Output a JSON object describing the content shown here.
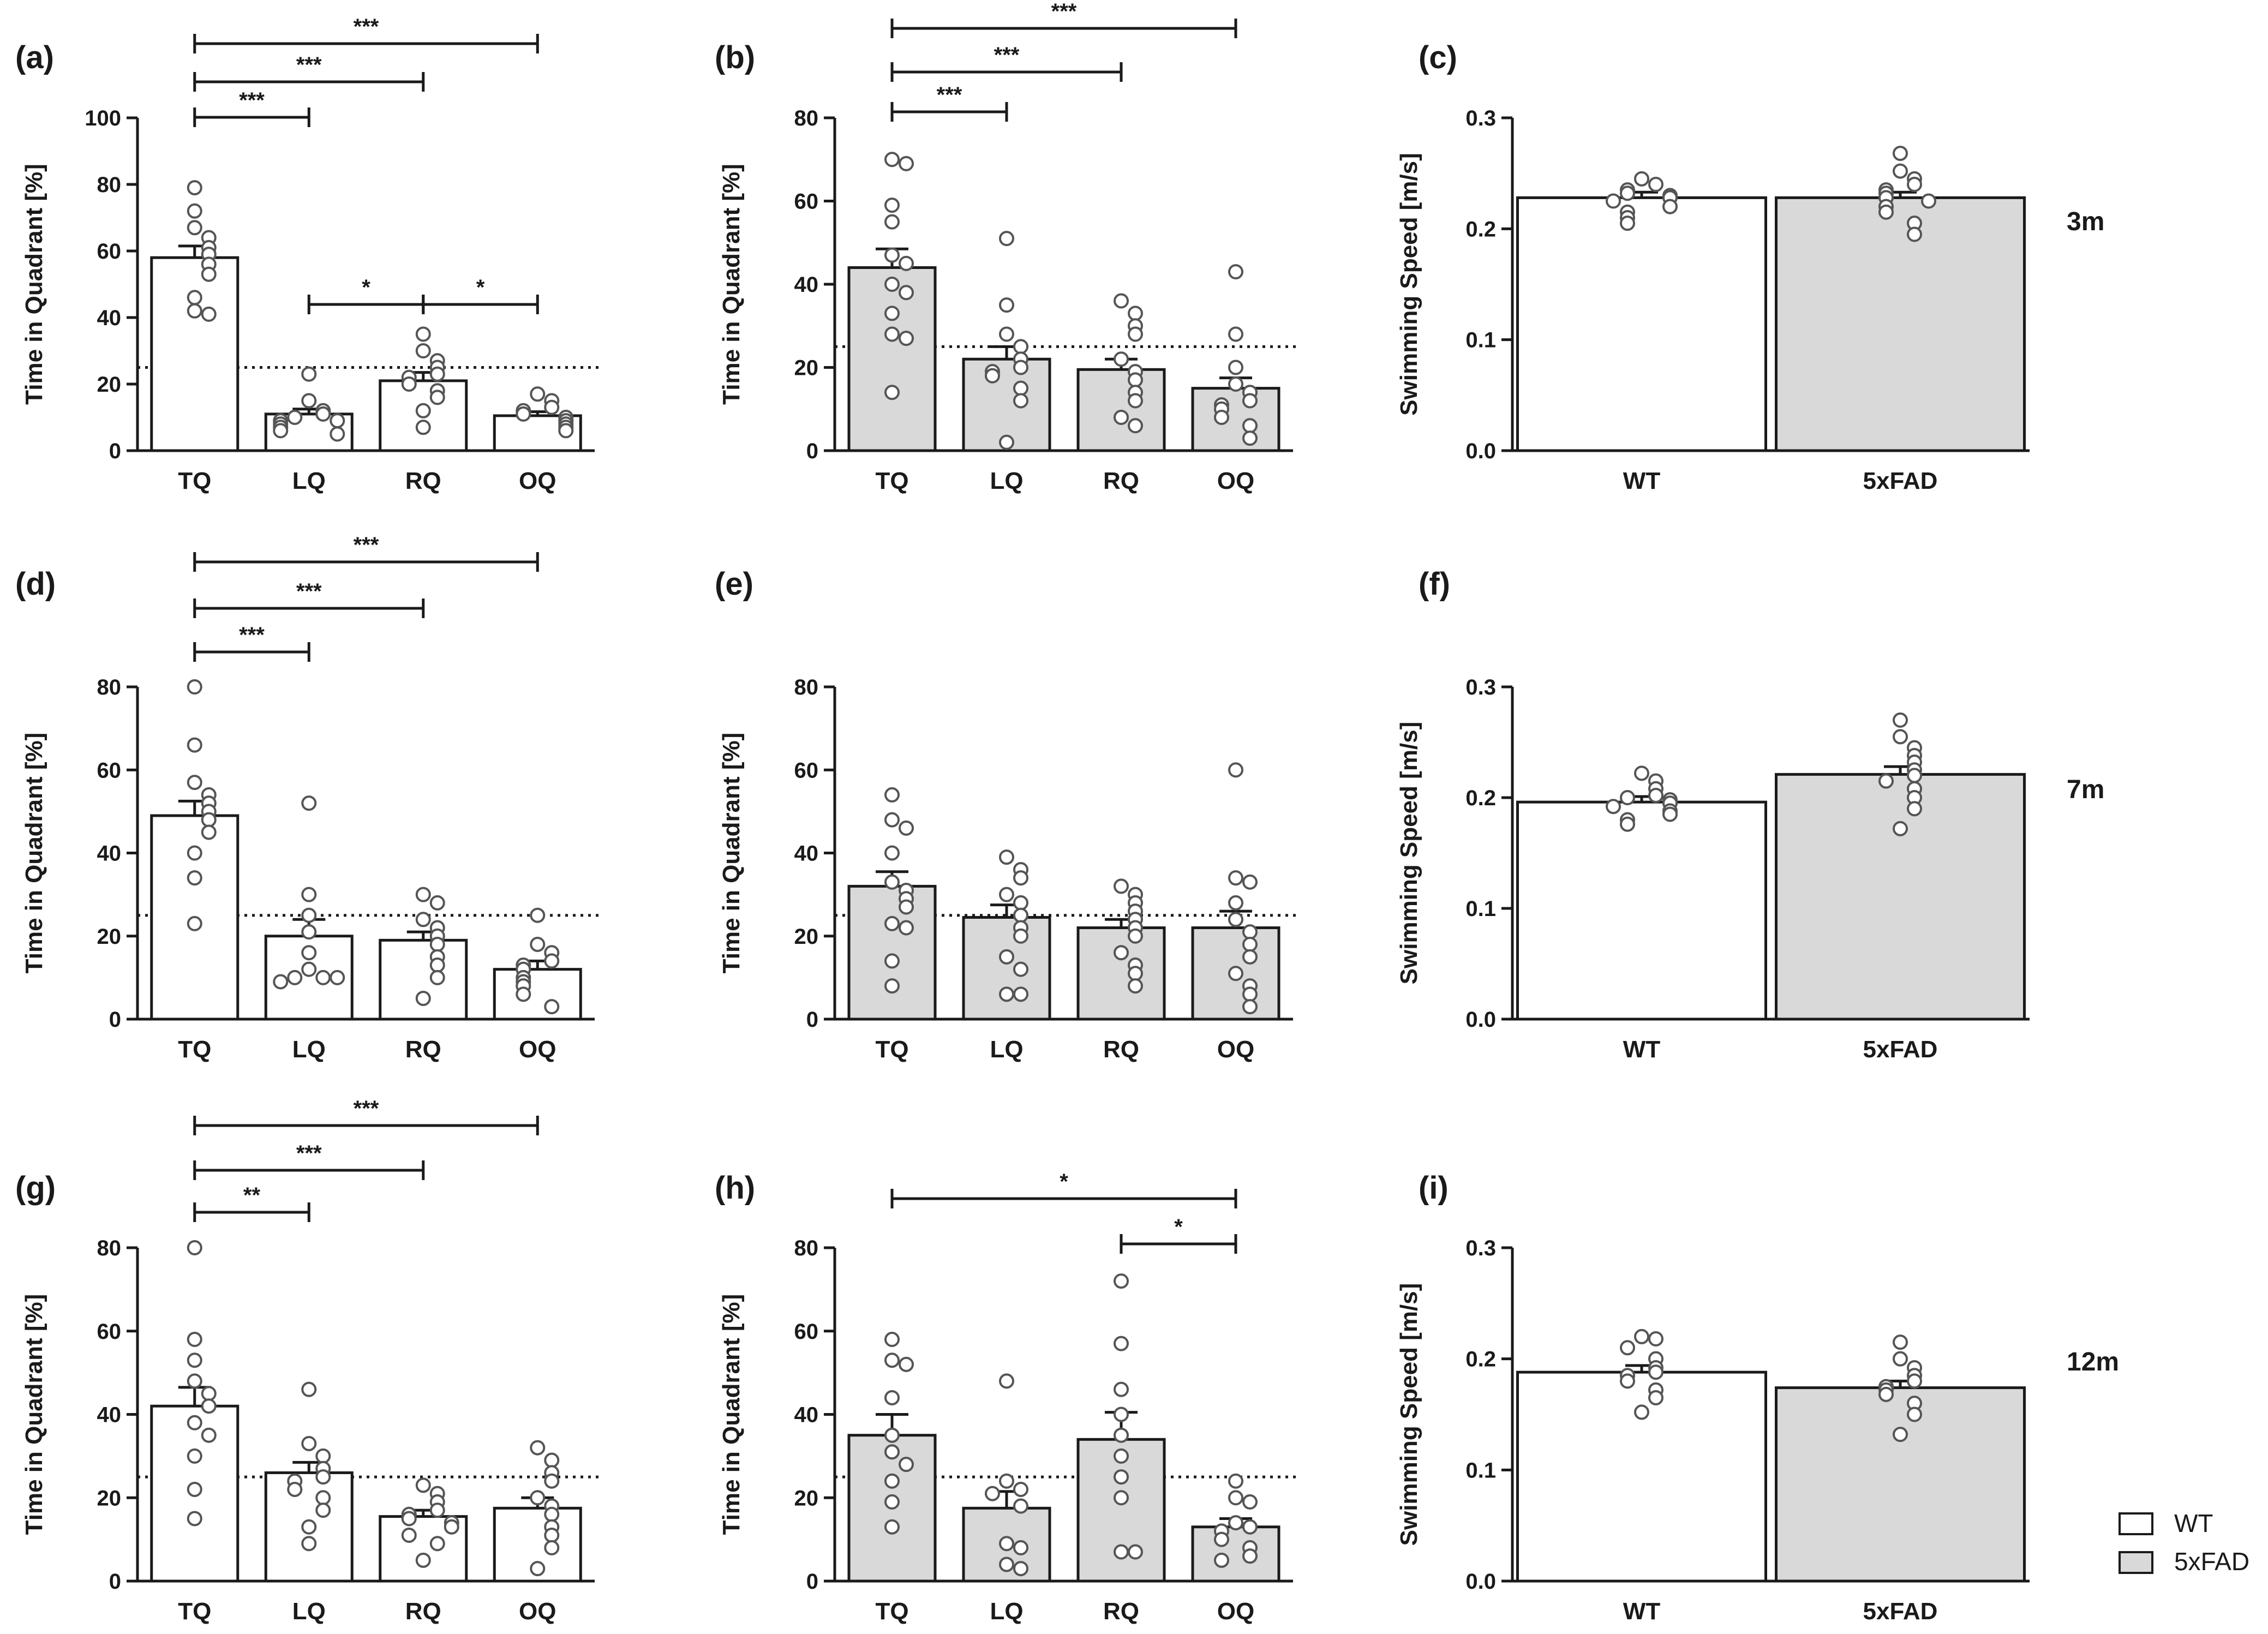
{
  "colors": {
    "wt": "#ffffff",
    "fad": "#d9d9d9",
    "ink": "#1a1a1a",
    "point_stroke": "#555555"
  },
  "legend": [
    {
      "name": "WT",
      "color": "#ffffff"
    },
    {
      "name": "5xFAD",
      "color": "#d9d9d9"
    }
  ],
  "ages": [
    "3m",
    "7m",
    "12m"
  ],
  "chart_data": [
    {
      "id": "a",
      "panel": "(a)",
      "type": "bar",
      "group": "WT",
      "title": "",
      "ylabel": "Time in Quadrant [%]",
      "xlabel": "",
      "categories": [
        "TQ",
        "LQ",
        "RQ",
        "OQ"
      ],
      "values": [
        58,
        11,
        21,
        10.5
      ],
      "sem": [
        3.5,
        1.5,
        2.5,
        1.2
      ],
      "ylim": [
        0,
        100
      ],
      "yticks": [
        "0",
        "20",
        "40",
        "60",
        "80",
        "100"
      ],
      "ytick_values": [
        0,
        20,
        40,
        60,
        80,
        100
      ],
      "chance_level": 25,
      "points": [
        [
          79,
          72,
          67,
          64,
          61,
          59,
          56,
          53,
          46,
          42,
          41
        ],
        [
          23,
          15,
          12,
          11,
          10,
          9,
          9,
          8,
          7,
          6,
          5
        ],
        [
          35,
          30,
          27,
          25,
          23,
          22,
          20,
          18,
          16,
          12,
          7
        ],
        [
          17,
          15,
          13,
          12,
          11,
          10,
          9,
          8,
          7,
          6
        ]
      ],
      "comparisons": [
        {
          "from": 0,
          "to": 1,
          "label": "***"
        },
        {
          "from": 0,
          "to": 2,
          "label": "***"
        },
        {
          "from": 0,
          "to": 3,
          "label": "***"
        },
        {
          "from": 1,
          "to": 2,
          "label": "*"
        },
        {
          "from": 2,
          "to": 3,
          "label": "*"
        }
      ]
    },
    {
      "id": "b",
      "panel": "(b)",
      "type": "bar",
      "group": "5xFAD",
      "title": "",
      "ylabel": "Time in Quadrant [%]",
      "xlabel": "",
      "categories": [
        "TQ",
        "LQ",
        "RQ",
        "OQ"
      ],
      "values": [
        44,
        22,
        19.5,
        15
      ],
      "sem": [
        4.5,
        3,
        2.5,
        2.5
      ],
      "ylim": [
        0,
        80
      ],
      "yticks": [
        "0",
        "20",
        "40",
        "60",
        "80"
      ],
      "ytick_values": [
        0,
        20,
        40,
        60,
        80
      ],
      "chance_level": 25,
      "points": [
        [
          70,
          69,
          59,
          55,
          47,
          45,
          40,
          38,
          33,
          28,
          27,
          14
        ],
        [
          51,
          35,
          28,
          25,
          22,
          20,
          19,
          18,
          15,
          12,
          2
        ],
        [
          36,
          33,
          30,
          28,
          22,
          19,
          17,
          14,
          12,
          8,
          6
        ],
        [
          43,
          28,
          20,
          16,
          14,
          12,
          11,
          10,
          8,
          6,
          3
        ]
      ],
      "comparisons": [
        {
          "from": 0,
          "to": 1,
          "label": "***"
        },
        {
          "from": 0,
          "to": 2,
          "label": "***"
        },
        {
          "from": 0,
          "to": 3,
          "label": "***"
        }
      ]
    },
    {
      "id": "c",
      "panel": "(c)",
      "type": "bar",
      "title": "",
      "ylabel": "Swimming Speed [m/s]",
      "xlabel": "",
      "categories": [
        "WT",
        "5xFAD"
      ],
      "values": [
        0.228,
        0.228
      ],
      "sem": [
        0.005,
        0.005
      ],
      "ylim": [
        0,
        0.3
      ],
      "yticks": [
        "0.0",
        "0.1",
        "0.2",
        "0.3"
      ],
      "ytick_values": [
        0,
        0.1,
        0.2,
        0.3
      ],
      "points": [
        [
          0.245,
          0.24,
          0.235,
          0.232,
          0.23,
          0.228,
          0.225,
          0.22,
          0.215,
          0.21,
          0.205
        ],
        [
          0.268,
          0.252,
          0.245,
          0.24,
          0.235,
          0.232,
          0.228,
          0.225,
          0.22,
          0.215,
          0.205,
          0.195
        ]
      ],
      "comparisons": []
    },
    {
      "id": "d",
      "panel": "(d)",
      "type": "bar",
      "group": "WT",
      "title": "",
      "ylabel": "Time in Quadrant [%]",
      "xlabel": "",
      "categories": [
        "TQ",
        "LQ",
        "RQ",
        "OQ"
      ],
      "values": [
        49,
        20,
        19,
        12
      ],
      "sem": [
        3.5,
        4,
        2,
        2
      ],
      "ylim": [
        0,
        80
      ],
      "yticks": [
        "0",
        "20",
        "40",
        "60",
        "80"
      ],
      "ytick_values": [
        0,
        20,
        40,
        60,
        80
      ],
      "chance_level": 25,
      "points": [
        [
          80,
          66,
          57,
          54,
          52,
          50,
          48,
          45,
          40,
          34,
          23
        ],
        [
          52,
          30,
          25,
          21,
          16,
          12,
          10,
          10,
          10,
          9
        ],
        [
          30,
          28,
          24,
          22,
          20,
          18,
          15,
          13,
          10,
          5
        ],
        [
          25,
          18,
          16,
          14,
          13,
          12,
          10,
          9,
          8,
          6,
          3
        ]
      ],
      "comparisons": [
        {
          "from": 0,
          "to": 1,
          "label": "***"
        },
        {
          "from": 0,
          "to": 2,
          "label": "***"
        },
        {
          "from": 0,
          "to": 3,
          "label": "***"
        }
      ]
    },
    {
      "id": "e",
      "panel": "(e)",
      "type": "bar",
      "group": "5xFAD",
      "title": "",
      "ylabel": "Time in Quadrant [%]",
      "xlabel": "",
      "categories": [
        "TQ",
        "LQ",
        "RQ",
        "OQ"
      ],
      "values": [
        32,
        24.5,
        22,
        22
      ],
      "sem": [
        3.5,
        3,
        2,
        4
      ],
      "ylim": [
        0,
        80
      ],
      "yticks": [
        "0",
        "20",
        "40",
        "60",
        "80"
      ],
      "ytick_values": [
        0,
        20,
        40,
        60,
        80
      ],
      "chance_level": 25,
      "points": [
        [
          54,
          48,
          46,
          40,
          33,
          31,
          29,
          27,
          23,
          22,
          14,
          8
        ],
        [
          39,
          36,
          34,
          30,
          28,
          25,
          22,
          20,
          15,
          12,
          6,
          6
        ],
        [
          32,
          30,
          28,
          26,
          24,
          22,
          20,
          16,
          13,
          11,
          8
        ],
        [
          60,
          34,
          33,
          28,
          24,
          21,
          18,
          15,
          11,
          8,
          6,
          3
        ]
      ],
      "comparisons": []
    },
    {
      "id": "f",
      "panel": "(f)",
      "type": "bar",
      "title": "",
      "ylabel": "Swimming Speed [m/s]",
      "xlabel": "",
      "categories": [
        "WT",
        "5xFAD"
      ],
      "values": [
        0.196,
        0.221
      ],
      "sem": [
        0.005,
        0.007
      ],
      "ylim": [
        0,
        0.3
      ],
      "yticks": [
        "0.0",
        "0.1",
        "0.2",
        "0.3"
      ],
      "ytick_values": [
        0,
        0.1,
        0.2,
        0.3
      ],
      "points": [
        [
          0.222,
          0.215,
          0.208,
          0.202,
          0.2,
          0.198,
          0.195,
          0.192,
          0.188,
          0.185,
          0.18,
          0.176
        ],
        [
          0.27,
          0.255,
          0.245,
          0.238,
          0.232,
          0.225,
          0.22,
          0.215,
          0.208,
          0.2,
          0.19,
          0.172
        ]
      ],
      "comparisons": []
    },
    {
      "id": "g",
      "panel": "(g)",
      "type": "bar",
      "group": "WT",
      "title": "",
      "ylabel": "Time in Quadrant [%]",
      "xlabel": "",
      "categories": [
        "TQ",
        "LQ",
        "RQ",
        "OQ"
      ],
      "values": [
        42,
        26,
        15.5,
        17.5
      ],
      "sem": [
        4.5,
        2.5,
        1.5,
        2.5
      ],
      "ylim": [
        0,
        80
      ],
      "yticks": [
        "0",
        "20",
        "40",
        "60",
        "80"
      ],
      "ytick_values": [
        0,
        20,
        40,
        60,
        80
      ],
      "chance_level": 25,
      "points": [
        [
          80,
          58,
          53,
          48,
          45,
          42,
          38,
          35,
          30,
          22,
          15
        ],
        [
          46,
          33,
          30,
          27,
          25,
          24,
          22,
          20,
          17,
          13,
          9
        ],
        [
          23,
          21,
          19,
          17,
          16,
          15,
          14,
          13,
          11,
          9,
          5
        ],
        [
          32,
          29,
          26,
          24,
          20,
          18,
          16,
          13,
          11,
          8,
          3
        ]
      ],
      "comparisons": [
        {
          "from": 0,
          "to": 1,
          "label": "**"
        },
        {
          "from": 0,
          "to": 2,
          "label": "***"
        },
        {
          "from": 0,
          "to": 3,
          "label": "***"
        }
      ]
    },
    {
      "id": "h",
      "panel": "(h)",
      "type": "bar",
      "group": "5xFAD",
      "title": "",
      "ylabel": "Time in Quadrant [%]",
      "xlabel": "",
      "categories": [
        "TQ",
        "LQ",
        "RQ",
        "OQ"
      ],
      "values": [
        35,
        17.5,
        34,
        13
      ],
      "sem": [
        5,
        4,
        6.5,
        2
      ],
      "ylim": [
        0,
        80
      ],
      "yticks": [
        "0",
        "20",
        "40",
        "60",
        "80"
      ],
      "ytick_values": [
        0,
        20,
        40,
        60,
        80
      ],
      "chance_level": 25,
      "points": [
        [
          58,
          53,
          52,
          44,
          35,
          31,
          28,
          24,
          19,
          13
        ],
        [
          48,
          24,
          22,
          21,
          18,
          9,
          8,
          4,
          3
        ],
        [
          72,
          57,
          46,
          40,
          35,
          30,
          25,
          20,
          7,
          7
        ],
        [
          24,
          20,
          19,
          14,
          13,
          12,
          10,
          8,
          6,
          5
        ]
      ],
      "comparisons": [
        {
          "from": 2,
          "to": 3,
          "label": "*"
        },
        {
          "from": 0,
          "to": 3,
          "label": "*"
        }
      ]
    },
    {
      "id": "i",
      "panel": "(i)",
      "type": "bar",
      "title": "",
      "ylabel": "Swimming Speed [m/s]",
      "xlabel": "",
      "categories": [
        "WT",
        "5xFAD"
      ],
      "values": [
        0.188,
        0.174
      ],
      "sem": [
        0.006,
        0.006
      ],
      "ylim": [
        0,
        0.3
      ],
      "yticks": [
        "0.0",
        "0.1",
        "0.2",
        "0.3"
      ],
      "ytick_values": [
        0,
        0.1,
        0.2,
        0.3
      ],
      "points": [
        [
          0.22,
          0.218,
          0.21,
          0.2,
          0.192,
          0.188,
          0.185,
          0.18,
          0.172,
          0.165,
          0.152
        ],
        [
          0.215,
          0.2,
          0.192,
          0.185,
          0.18,
          0.175,
          0.172,
          0.168,
          0.16,
          0.15,
          0.132
        ]
      ],
      "comparisons": []
    }
  ]
}
